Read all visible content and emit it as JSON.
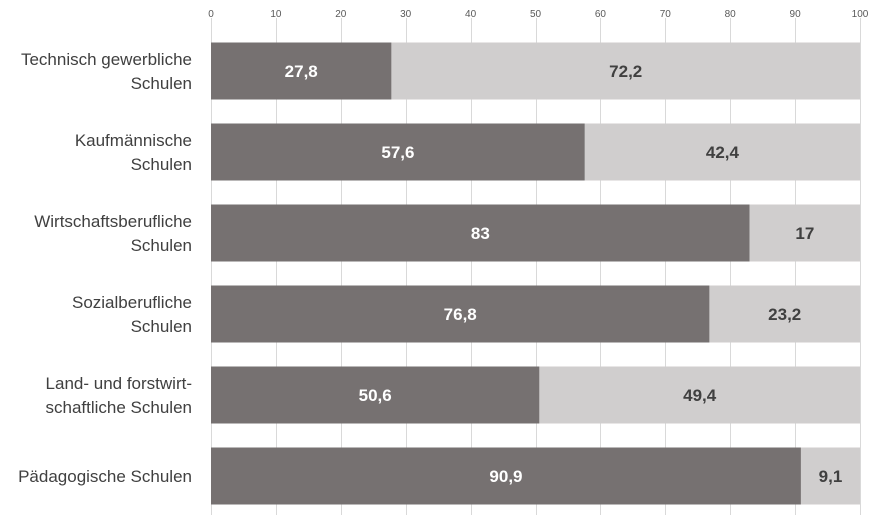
{
  "chart_data": {
    "type": "bar",
    "orientation": "horizontal",
    "stacked": true,
    "categories": [
      [
        "Technisch gewerbliche",
        "Schulen"
      ],
      [
        "Kaufmännische",
        "Schulen"
      ],
      [
        "Wirtschaftsberufliche",
        "Schulen"
      ],
      [
        "Sozialberufliche",
        "Schulen"
      ],
      [
        "Land- und forstwirt-",
        "schaftliche Schulen"
      ],
      [
        "Pädagogische Schulen"
      ]
    ],
    "series": [
      {
        "values": [
          27.8,
          57.6,
          83,
          76.8,
          50.6,
          90.9
        ],
        "labels": [
          "27,8",
          "57,6",
          "83",
          "76,8",
          "50,6",
          "90,9"
        ],
        "color": "#767171",
        "label_color": "#ffffff"
      },
      {
        "values": [
          72.2,
          42.4,
          17,
          23.2,
          49.4,
          9.1
        ],
        "labels": [
          "72,2",
          "42,4",
          "17",
          "23,2",
          "49,4",
          "9,1"
        ],
        "color": "#d0cece",
        "label_color": "#404040"
      }
    ],
    "xlim": [
      0,
      100
    ],
    "xticks": [
      0,
      10,
      20,
      30,
      40,
      50,
      60,
      70,
      80,
      90,
      100
    ],
    "axis_position": "top",
    "grid": true,
    "legend": false,
    "title": "",
    "xlabel": "",
    "ylabel": ""
  }
}
